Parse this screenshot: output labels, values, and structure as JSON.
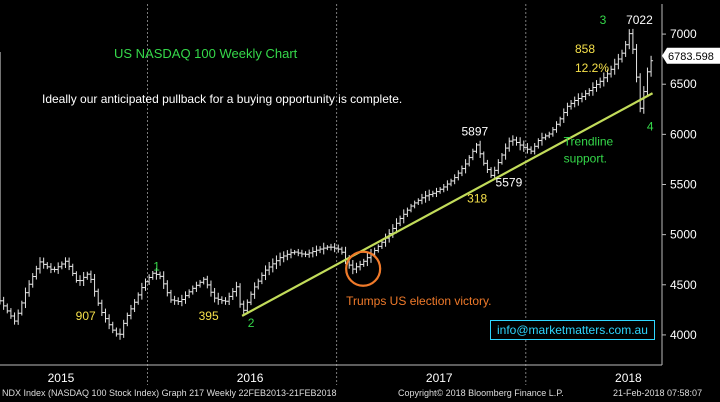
{
  "chart_data": {
    "type": "candlestick",
    "title": "US NASDAQ 100 Weekly Chart",
    "subtitle": "Ideally our anticipated pullback for a buying opportunity is complete.",
    "ylim": [
      3700,
      7300
    ],
    "yticks": [
      4000,
      4500,
      5000,
      5500,
      6000,
      6500,
      7000
    ],
    "ytick_labels": [
      "4000",
      "4500",
      "5000",
      "5500",
      "6000",
      "6500",
      "7000"
    ],
    "xlim": [
      2014.72,
      2018.22
    ],
    "xtick_labels": [
      {
        "label": "2015",
        "x": 2015.0
      },
      {
        "label": "2016",
        "x": 2016.0
      },
      {
        "label": "2017",
        "x": 2017.0
      },
      {
        "label": "2018",
        "x": 2018.0
      }
    ],
    "year_separators": [
      2015.5,
      2016.5,
      2017.5
    ],
    "last_price": 6783.598,
    "last_price_label": "6783.598",
    "path": [
      [
        2014.72,
        4340
      ],
      [
        2014.8,
        4130
      ],
      [
        2014.86,
        4450
      ],
      [
        2014.93,
        4730
      ],
      [
        2015.0,
        4640
      ],
      [
        2015.07,
        4740
      ],
      [
        2015.13,
        4520
      ],
      [
        2015.19,
        4620
      ],
      [
        2015.25,
        4250
      ],
      [
        2015.31,
        4060
      ],
      [
        2015.35,
        3980
      ],
      [
        2015.38,
        4150
      ],
      [
        2015.43,
        4320
      ],
      [
        2015.48,
        4510
      ],
      [
        2015.53,
        4620
      ],
      [
        2015.57,
        4580
      ],
      [
        2015.62,
        4350
      ],
      [
        2015.67,
        4330
      ],
      [
        2015.73,
        4450
      ],
      [
        2015.8,
        4560
      ],
      [
        2015.85,
        4370
      ],
      [
        2015.91,
        4330
      ],
      [
        2015.97,
        4480
      ],
      [
        2016.0,
        4210
      ],
      [
        2016.06,
        4460
      ],
      [
        2016.12,
        4640
      ],
      [
        2016.2,
        4770
      ],
      [
        2016.27,
        4830
      ],
      [
        2016.33,
        4800
      ],
      [
        2016.4,
        4850
      ],
      [
        2016.46,
        4880
      ],
      [
        2016.52,
        4850
      ],
      [
        2016.58,
        4650
      ],
      [
        2016.63,
        4710
      ],
      [
        2016.7,
        4840
      ],
      [
        2016.77,
        4990
      ],
      [
        2016.83,
        5150
      ],
      [
        2016.9,
        5300
      ],
      [
        2016.96,
        5380
      ],
      [
        2017.02,
        5420
      ],
      [
        2017.07,
        5480
      ],
      [
        2017.12,
        5560
      ],
      [
        2017.18,
        5700
      ],
      [
        2017.24,
        5897
      ],
      [
        2017.28,
        5700
      ],
      [
        2017.32,
        5579
      ],
      [
        2017.37,
        5780
      ],
      [
        2017.42,
        5960
      ],
      [
        2017.48,
        5880
      ],
      [
        2017.53,
        5830
      ],
      [
        2017.57,
        5950
      ],
      [
        2017.63,
        6010
      ],
      [
        2017.68,
        6150
      ],
      [
        2017.72,
        6280
      ],
      [
        2017.76,
        6340
      ],
      [
        2017.8,
        6380
      ],
      [
        2017.85,
        6460
      ],
      [
        2017.9,
        6540
      ],
      [
        2017.94,
        6620
      ],
      [
        2017.97,
        6700
      ],
      [
        2018.0,
        6780
      ],
      [
        2018.02,
        6850
      ],
      [
        2018.05,
        7022
      ],
      [
        2018.08,
        6700
      ],
      [
        2018.1,
        6220
      ],
      [
        2018.13,
        6480
      ],
      [
        2018.15,
        6700
      ],
      [
        2018.18,
        6783.598
      ]
    ],
    "trendline": {
      "from": [
        2016.0,
        4190
      ],
      "to": [
        2018.17,
        6410
      ],
      "color": "#c2dc5a"
    },
    "circle": {
      "x": 2016.64,
      "y": 4660,
      "color": "#f07a2a"
    },
    "annotations": [
      {
        "text": "907",
        "x": 2015.12,
        "y": 4150,
        "color": "#f5e04a"
      },
      {
        "text": "1",
        "x": 2015.53,
        "y": 4640,
        "color": "#35d84a"
      },
      {
        "text": "395",
        "x": 2015.77,
        "y": 4150,
        "color": "#f5e04a"
      },
      {
        "text": "2",
        "x": 2016.03,
        "y": 4080,
        "color": "#35d84a"
      },
      {
        "text": "Trumps US election victory.",
        "x": 2016.55,
        "y": 4300,
        "color": "#f07a2a"
      },
      {
        "text": "5897",
        "x": 2017.16,
        "y": 5990,
        "color": "#ffffff"
      },
      {
        "text": "5579",
        "x": 2017.34,
        "y": 5480,
        "color": "#ffffff"
      },
      {
        "text": "318",
        "x": 2017.19,
        "y": 5320,
        "color": "#f5e04a"
      },
      {
        "text": "Trendline",
        "x": 2017.7,
        "y": 5890,
        "color": "#35d84a"
      },
      {
        "text": "support.",
        "x": 2017.7,
        "y": 5720,
        "color": "#35d84a"
      },
      {
        "text": "3",
        "x": 2017.89,
        "y": 7100,
        "color": "#35d84a"
      },
      {
        "text": "7022",
        "x": 2018.03,
        "y": 7100,
        "color": "#ffffff"
      },
      {
        "text": "858",
        "x": 2017.76,
        "y": 6810,
        "color": "#f5e04a"
      },
      {
        "text": "12.2%",
        "x": 2017.76,
        "y": 6620,
        "color": "#f5e04a"
      },
      {
        "text": "4",
        "x": 2018.14,
        "y": 6040,
        "color": "#35d84a"
      }
    ],
    "legend": {
      "text": "info@marketmatters.com.au",
      "placement": "bottom-right"
    }
  },
  "footer": {
    "left": "NDX Index (NASDAQ 100 Stock Index) Graph 217  Weekly 22FEB2013-21FEB2018",
    "center": "Copyright© 2018 Bloomberg Finance L.P.",
    "right": "21-Feb-2018 07:58:07"
  }
}
